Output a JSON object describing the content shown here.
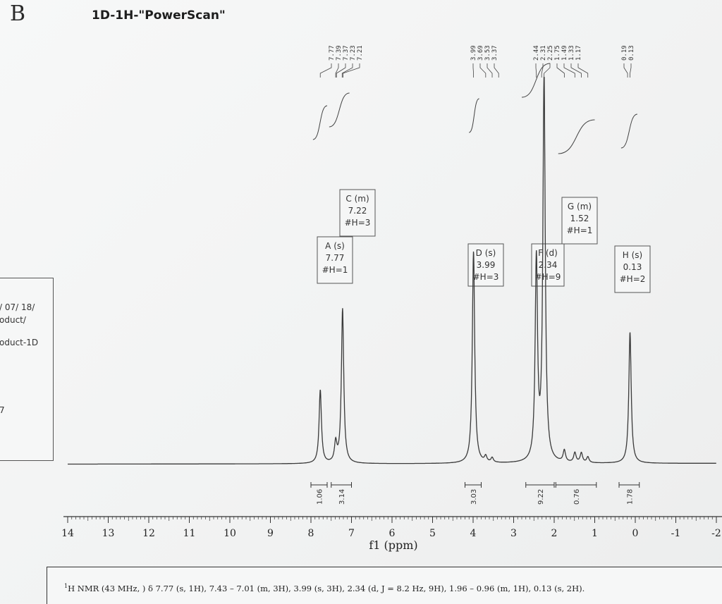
{
  "corner_mark": "B",
  "page_title": "1D-1H-\"PowerScan\"",
  "side_panel": {
    "lines": [
      "/ 07/ 18/",
      "oduct/",
      "oduct-1D",
      "7"
    ]
  },
  "footer": {
    "superscript": "1",
    "text": "H NMR (43 MHz, ) δ 7.77 (s, 1H), 7.43 – 7.01 (m, 3H), 3.99 (s, 3H), 2.34 (d, J = 8.2 Hz, 9H), 1.96 – 0.96 (m, 1H), 0.13 (s, 2H)."
  },
  "chart_data": {
    "type": "line",
    "title": "1D-1H-\"PowerScan\"",
    "xlabel": "f1 (ppm)",
    "ylabel": "",
    "xlim": [
      14,
      -2
    ],
    "x_reversed": true,
    "x_ticks": [
      14,
      13,
      12,
      11,
      10,
      9,
      8,
      7,
      6,
      5,
      4,
      3,
      2,
      1,
      0,
      -1,
      -2
    ],
    "x_tick_labels": [
      "14",
      "13",
      "12",
      "11",
      "10",
      "9",
      "8",
      "7",
      "6",
      "5",
      "4",
      "3",
      "2",
      "1",
      "0",
      "-1",
      "-2"
    ],
    "grid": false,
    "peak_labels": [
      {
        "group": "left",
        "values": [
          "7.77",
          "7.39",
          "7.37",
          "7.23",
          "7.21"
        ]
      },
      {
        "group": "middle",
        "values": [
          "3.99",
          "3.69",
          "3.53",
          "3.37"
        ]
      },
      {
        "group": "right",
        "values": [
          "2.44",
          "2.31",
          "2.25",
          "1.75",
          "1.49",
          "1.33",
          "1.17"
        ]
      },
      {
        "group": "far-right",
        "values": [
          "0.19",
          "0.13"
        ]
      }
    ],
    "peaks": [
      {
        "ppm": 7.77,
        "height": 0.19
      },
      {
        "ppm": 7.39,
        "height": 0.05
      },
      {
        "ppm": 7.22,
        "height": 0.4
      },
      {
        "ppm": 3.99,
        "height": 0.55
      },
      {
        "ppm": 3.69,
        "height": 0.015
      },
      {
        "ppm": 3.53,
        "height": 0.012
      },
      {
        "ppm": 2.44,
        "height": 0.52
      },
      {
        "ppm": 2.25,
        "height": 1.0
      },
      {
        "ppm": 1.75,
        "height": 0.03
      },
      {
        "ppm": 1.49,
        "height": 0.025
      },
      {
        "ppm": 1.33,
        "height": 0.025
      },
      {
        "ppm": 1.17,
        "height": 0.015
      },
      {
        "ppm": 0.13,
        "height": 0.34
      }
    ],
    "multiplet_boxes": [
      {
        "lines": [
          "C (m)",
          "7.22",
          "#H=3"
        ]
      },
      {
        "lines": [
          "A (s)",
          "7.77",
          "#H=1"
        ]
      },
      {
        "lines": [
          "D (s)",
          "3.99",
          "#H=3"
        ]
      },
      {
        "lines": [
          "F (d)",
          "2.34",
          "#H=9"
        ]
      },
      {
        "lines": [
          "G (m)",
          "1.52",
          "#H=1"
        ]
      },
      {
        "lines": [
          "H (s)",
          "0.13",
          "#H=2"
        ]
      }
    ],
    "integrations": [
      {
        "label": "1.06",
        "from": 8.0,
        "to": 7.6
      },
      {
        "label": "3.14",
        "from": 7.5,
        "to": 7.0
      },
      {
        "label": "3.03",
        "from": 4.2,
        "to": 3.8
      },
      {
        "label": "9.22",
        "from": 2.7,
        "to": 2.0
      },
      {
        "label": "0.76",
        "from": 1.96,
        "to": 0.96
      },
      {
        "label": "1.78",
        "from": 0.4,
        "to": -0.1
      }
    ],
    "integral_regions": [
      {
        "from": 7.95,
        "to": 7.6
      },
      {
        "from": 7.55,
        "to": 7.05
      },
      {
        "from": 4.1,
        "to": 3.85
      },
      {
        "from": 2.8,
        "to": 2.1
      },
      {
        "from": 1.9,
        "to": 1.0
      },
      {
        "from": 0.35,
        "to": -0.05
      }
    ]
  }
}
